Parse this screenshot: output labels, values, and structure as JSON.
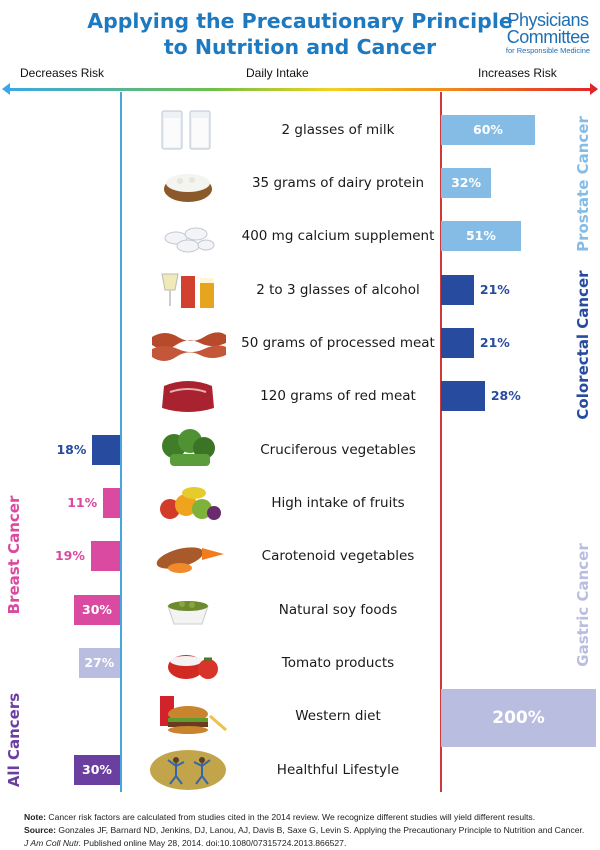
{
  "title_line1": "Applying the Precautionary Principle",
  "title_line2": "to Nutrition and Cancer",
  "logo": {
    "line1": "Physicians",
    "line2": "Committee",
    "line3": "for Responsible Medicine"
  },
  "headers": {
    "left": "Decreases Risk",
    "center": "Daily Intake",
    "right": "Increases Risk"
  },
  "groups": {
    "prostate": "Prostate Cancer",
    "colorectal": "Colorectal Cancer",
    "gastric": "Gastric Cancer",
    "breast": "Breast Cancer",
    "all": "All Cancers"
  },
  "colors": {
    "prostate": "#84bce6",
    "colorectal": "#274b9f",
    "gastric": "#b9bde0",
    "breast": "#d94aa0",
    "all": "#6b3fa0",
    "cruciferous": "#274b9f",
    "tomato": "#b9bde0"
  },
  "chart_data": {
    "type": "bar",
    "units": "%",
    "categories": [
      "2 glasses of milk",
      "35 grams of dairy protein",
      "400 mg calcium supplement",
      "2 to 3 glasses of alcohol",
      "50 grams of processed meat",
      "120 grams of red meat",
      "Cruciferous vegetables",
      "High intake of fruits",
      "Carotenoid vegetables",
      "Natural soy foods",
      "Tomato products",
      "Western diet",
      "Healthful Lifestyle"
    ],
    "values": [
      60,
      32,
      51,
      21,
      21,
      28,
      -18,
      -11,
      -19,
      -30,
      -27,
      200,
      -30
    ],
    "value_labels": [
      "60%",
      "32%",
      "51%",
      "21%",
      "21%",
      "28%",
      "18%",
      "11%",
      "19%",
      "30%",
      "27%",
      "200%",
      "30%"
    ],
    "groups": [
      "prostate",
      "prostate",
      "prostate",
      "colorectal",
      "colorectal",
      "colorectal",
      "cruciferous",
      "breast",
      "breast",
      "breast",
      "tomato",
      "gastric",
      "all"
    ],
    "icons": [
      "milk-icon",
      "cottage-cheese-icon",
      "calcium-pills-icon",
      "alcohol-icon",
      "bacon-icon",
      "red-meat-icon",
      "broccoli-icon",
      "fruits-icon",
      "sweet-potato-icon",
      "soybeans-icon",
      "tomato-icon",
      "burger-fries-icon",
      "exercise-icon"
    ],
    "xlabel_left": "Decreases Risk",
    "xlabel_right": "Increases Risk"
  },
  "footnote": {
    "note_label": "Note:",
    "note_text": " Cancer risk factors are calculated from studies cited in the 2014 review. We recognize different studies will yield different results.",
    "source_label": "Source:",
    "source_text": " Gonzales JF, Barnard ND, Jenkins, DJ, Lanou, AJ, Davis B, Saxe G, Levin S. Applying the Precautionary Principle to Nutrition and Cancer.",
    "journal": "J Am Coll Nutr.",
    "published": " Published online May 28, 2014. doi:10.1080/07315724.2013.866527."
  }
}
